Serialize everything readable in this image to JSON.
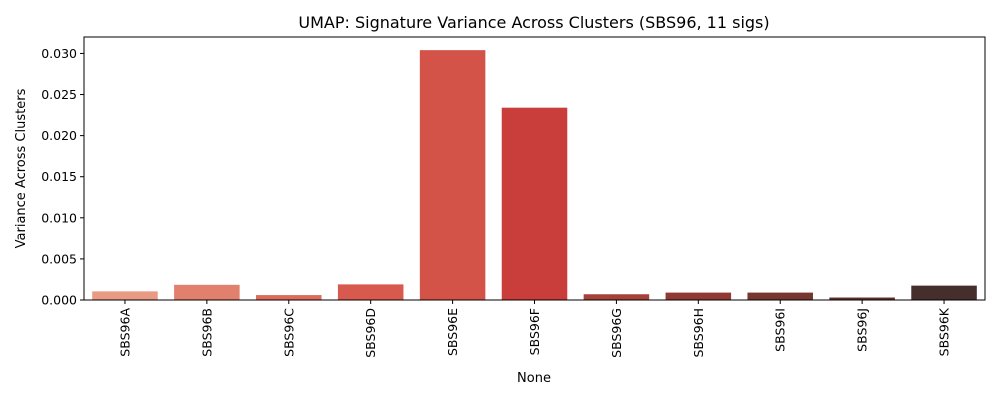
{
  "chart_data": {
    "type": "bar",
    "title": "UMAP: Signature Variance Across Clusters (SBS96, 11 sigs)",
    "xlabel": "None",
    "ylabel": "Variance Across Clusters",
    "categories": [
      "SBS96A",
      "SBS96B",
      "SBS96C",
      "SBS96D",
      "SBS96E",
      "SBS96F",
      "SBS96G",
      "SBS96H",
      "SBS96I",
      "SBS96J",
      "SBS96K"
    ],
    "values": [
      0.00105,
      0.00185,
      0.0006,
      0.0019,
      0.0304,
      0.0234,
      0.0007,
      0.0009,
      0.0009,
      0.0003,
      0.00175
    ],
    "colors": [
      "#e89a84",
      "#e0806d",
      "#dd6b5a",
      "#d8594e",
      "#d35349",
      "#c93e3a",
      "#a8403a",
      "#8f3a33",
      "#77362f",
      "#5e302b",
      "#452f2d"
    ],
    "ylim": [
      0,
      0.032
    ],
    "yticks": [
      "0.000",
      "0.005",
      "0.010",
      "0.015",
      "0.020",
      "0.025",
      "0.030"
    ],
    "ytick_values": [
      0,
      0.005,
      0.01,
      0.015,
      0.02,
      0.025,
      0.03
    ],
    "grid": false,
    "legend": "none"
  }
}
